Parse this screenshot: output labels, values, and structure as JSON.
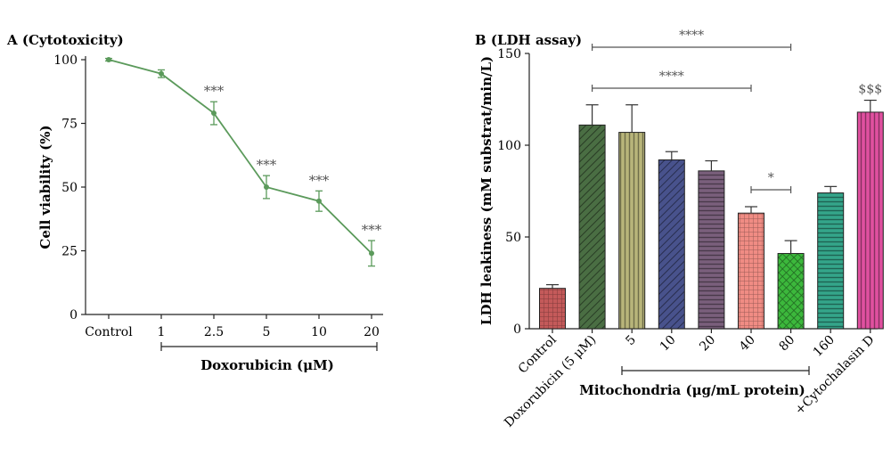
{
  "chart_data": [
    {
      "type": "line",
      "title": "A (Cytotoxicity)",
      "xlabel": "Doxorubicin (μM)",
      "ylabel": "Cell viability (%)",
      "categories": [
        "Control",
        "1",
        "2.5",
        "5",
        "10",
        "20"
      ],
      "values": [
        100,
        94.5,
        79,
        50,
        44.5,
        24
      ],
      "errors": [
        0.5,
        1.5,
        4.5,
        4.5,
        4,
        5
      ],
      "annotations": [
        "",
        "",
        "***",
        "***",
        "***",
        "***"
      ],
      "ylim": [
        0,
        100
      ],
      "yticks": [
        0,
        25,
        50,
        75,
        100
      ],
      "color": "#5b9a5b",
      "grid": false
    },
    {
      "type": "bar",
      "title": "B (LDH assay)",
      "xlabel": "Mitochondria (μg/mL protein)",
      "ylabel": "LDH leakiness (mM substrat/min/L)",
      "categories": [
        "Control",
        "Doxorubicin (5 μM)",
        "5",
        "10",
        "20",
        "40",
        "80",
        "160",
        "+Cytochalasin D"
      ],
      "values": [
        22,
        111,
        107,
        92,
        86,
        63,
        41,
        74,
        118
      ],
      "errors": [
        2,
        11,
        15,
        4.5,
        5.5,
        3.5,
        7,
        3.5,
        6.5
      ],
      "colors": [
        "#c45a5a",
        "#4a6e43",
        "#b8b57a",
        "#48528c",
        "#7a5f7c",
        "#f08c84",
        "#3cb83c",
        "#34a58a",
        "#e050a0"
      ],
      "patterns": [
        "grid",
        "diag",
        "vert",
        "diag",
        "horiz",
        "grid",
        "cross",
        "horiz",
        "vert"
      ],
      "ylim": [
        0,
        150
      ],
      "yticks": [
        0,
        50,
        100,
        150
      ],
      "brackets": [
        {
          "from": 1,
          "to": 6,
          "label": "****"
        },
        {
          "from": 1,
          "to": 5,
          "label": "****"
        },
        {
          "from": 5,
          "to": 6,
          "label": "*"
        }
      ],
      "special_annotation": {
        "index": 8,
        "label": "$$$"
      },
      "grid": false
    }
  ]
}
